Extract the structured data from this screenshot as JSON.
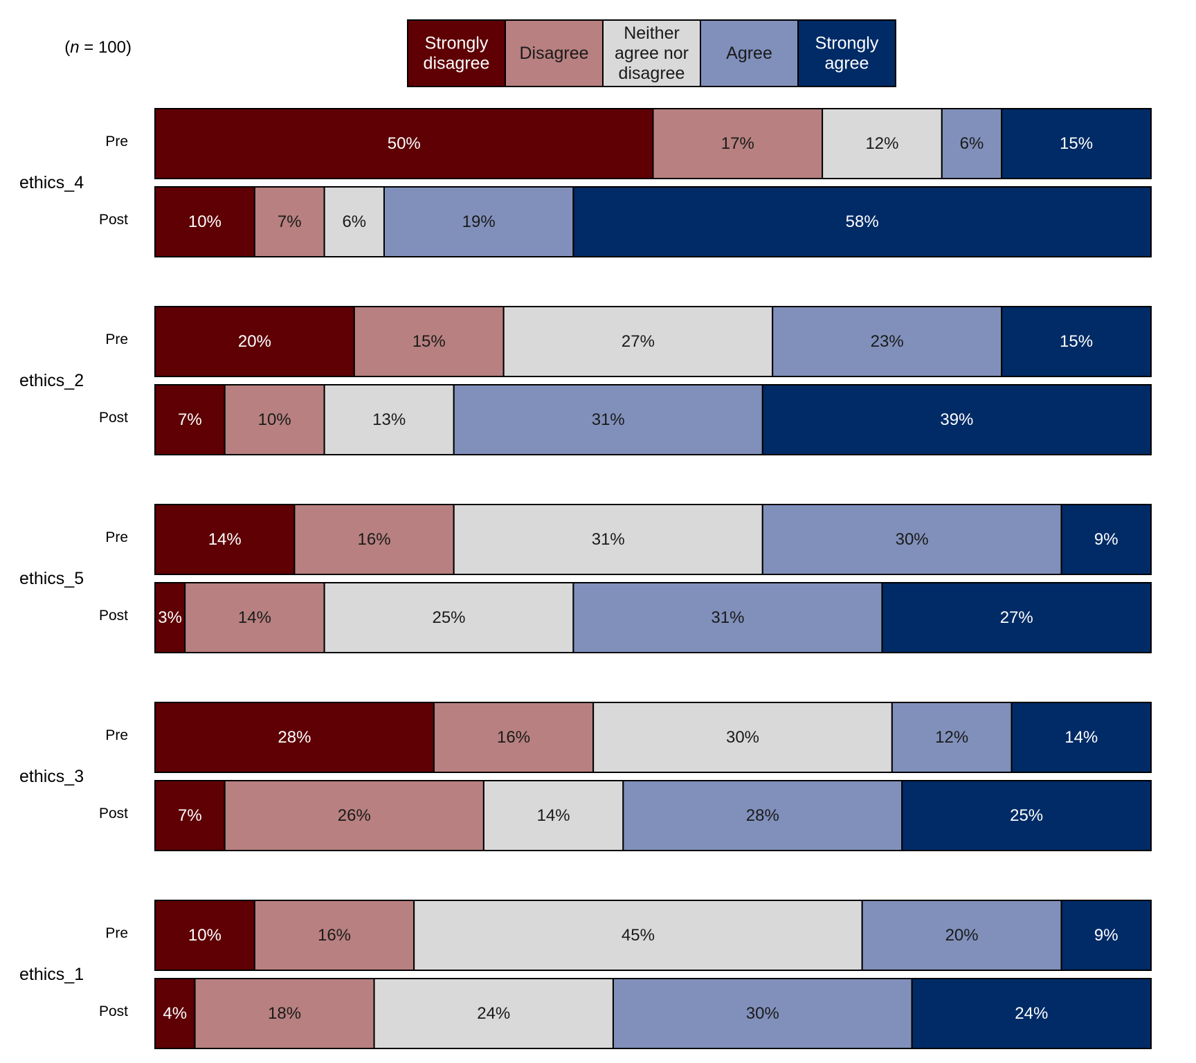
{
  "chart_data": {
    "type": "bar",
    "orientation": "horizontal",
    "stacked": true,
    "normalized": true,
    "sample_size": {
      "prefix": "(",
      "symbol": "n",
      "rest": " = 100)",
      "value": 100
    },
    "legend_position": "top",
    "categories": [
      "Strongly disagree",
      "Disagree",
      "Neither agree nor disagree",
      "Agree",
      "Strongly agree"
    ],
    "legend_entries": [
      {
        "name": "Strongly disagree",
        "lines": [
          "Strongly",
          "disagree"
        ],
        "color": "#5e0004",
        "text_color": "#ffffff"
      },
      {
        "name": "Disagree",
        "lines": [
          "Disagree"
        ],
        "color": "#b88080",
        "text_color": "#1a1a1a"
      },
      {
        "name": "Neither agree nor disagree",
        "lines": [
          "Neither",
          "agree nor",
          "disagree"
        ],
        "color": "#d9d9d9",
        "text_color": "#1a1a1a"
      },
      {
        "name": "Agree",
        "lines": [
          "Agree"
        ],
        "color": "#8190bb",
        "text_color": "#1a1a1a"
      },
      {
        "name": "Strongly agree",
        "lines": [
          "Strongly",
          "agree"
        ],
        "color": "#002b66",
        "text_color": "#ffffff"
      }
    ],
    "groups": [
      {
        "name": "ethics_4",
        "bars": [
          {
            "label": "Pre",
            "values": [
              50,
              17,
              12,
              6,
              15
            ]
          },
          {
            "label": "Post",
            "values": [
              10,
              7,
              6,
              19,
              58
            ]
          }
        ]
      },
      {
        "name": "ethics_2",
        "bars": [
          {
            "label": "Pre",
            "values": [
              20,
              15,
              27,
              23,
              15
            ]
          },
          {
            "label": "Post",
            "values": [
              7,
              10,
              13,
              31,
              39
            ]
          }
        ]
      },
      {
        "name": "ethics_5",
        "bars": [
          {
            "label": "Pre",
            "values": [
              14,
              16,
              31,
              30,
              9
            ]
          },
          {
            "label": "Post",
            "values": [
              3,
              14,
              25,
              31,
              27
            ]
          }
        ]
      },
      {
        "name": "ethics_3",
        "bars": [
          {
            "label": "Pre",
            "values": [
              28,
              16,
              30,
              12,
              14
            ]
          },
          {
            "label": "Post",
            "values": [
              7,
              26,
              14,
              28,
              25
            ]
          }
        ]
      },
      {
        "name": "ethics_1",
        "bars": [
          {
            "label": "Pre",
            "values": [
              10,
              16,
              45,
              20,
              9
            ]
          },
          {
            "label": "Post",
            "values": [
              4,
              18,
              24,
              30,
              24
            ]
          }
        ]
      }
    ],
    "value_suffix": "%",
    "xlim": [
      0,
      100
    ],
    "grid": false
  }
}
